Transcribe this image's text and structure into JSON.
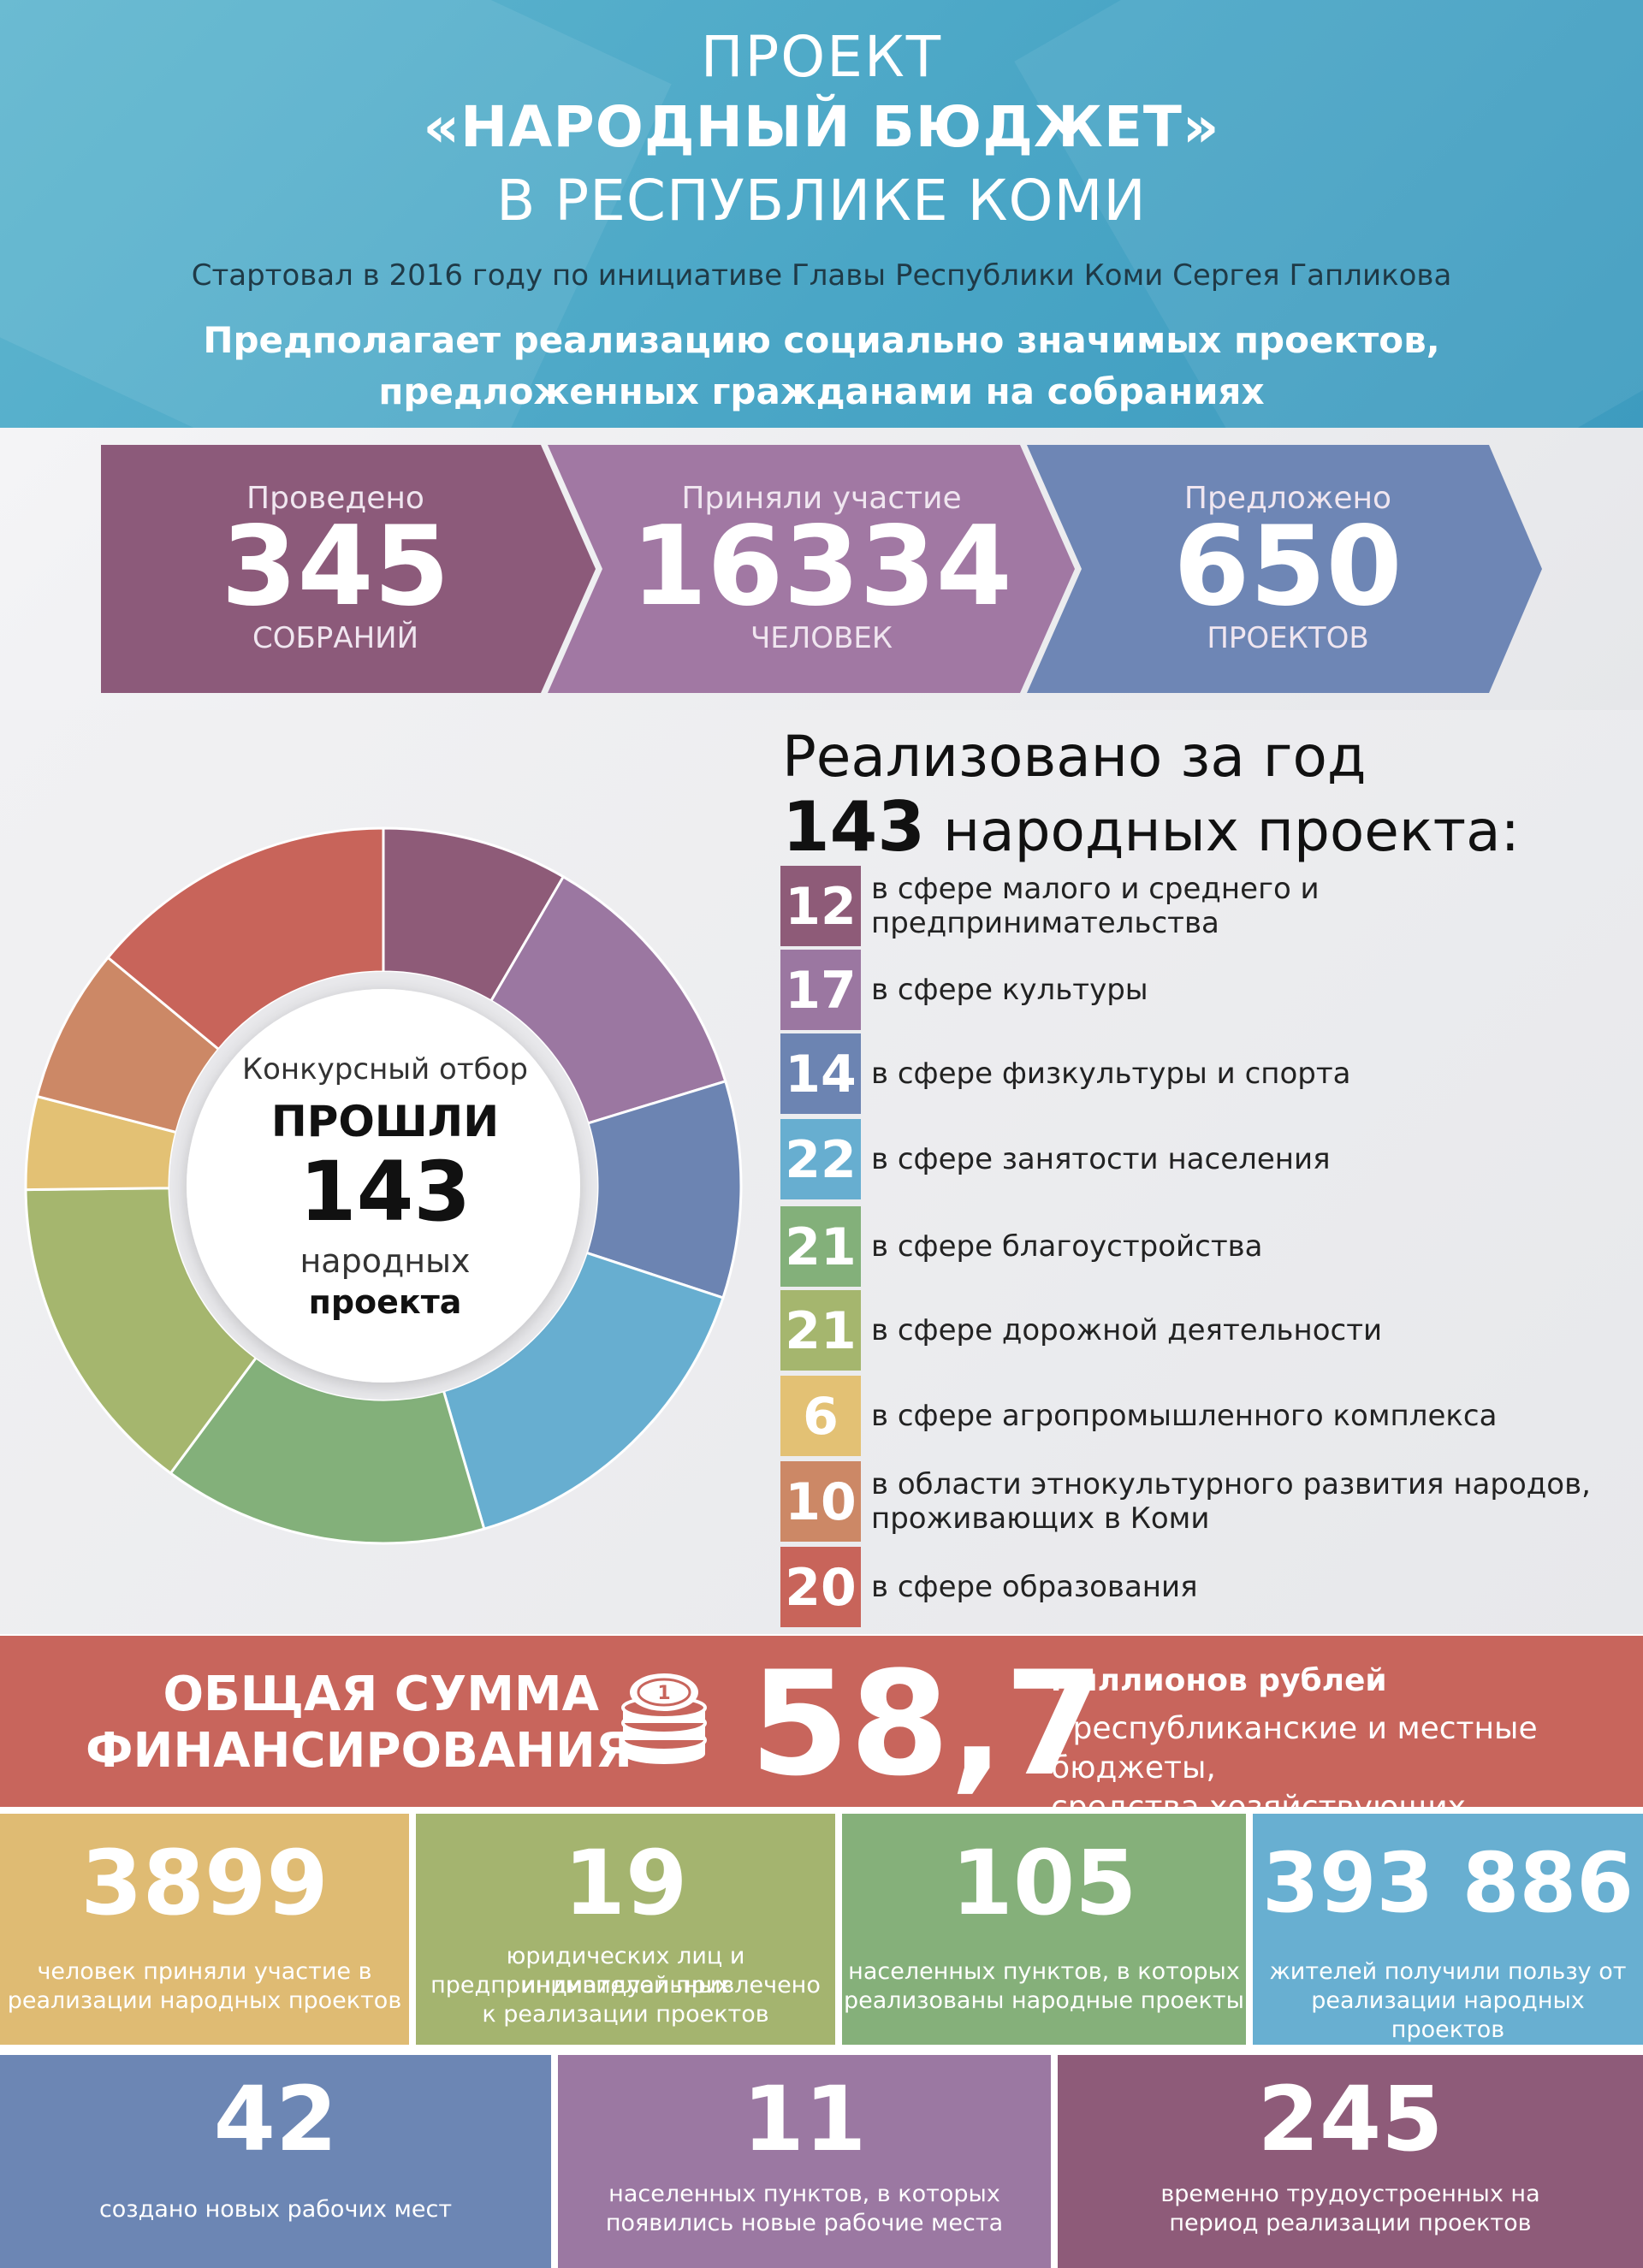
{
  "header": {
    "title_line1": "ПРОЕКТ",
    "title_line2": "«НАРОДНЫЙ БЮДЖЕТ»",
    "title_line3": "В РЕСПУБЛИКЕ КОМИ",
    "started": "Стартовал в 2016 году по инициативе Главы Республики Коми Сергея Гапликова",
    "purpose_line1": "Предполагает реализацию  социально значимых проектов,",
    "purpose_line2": "предложенных гражданами на собраниях"
  },
  "stats": [
    {
      "label": "Проведено",
      "value": "345",
      "unit": "СОБРАНИЙ",
      "color": "#8c5a7a"
    },
    {
      "label": "Приняли участие",
      "value": "16334",
      "unit": "ЧЕЛОВЕК",
      "color": "#a178a3"
    },
    {
      "label": "Предложено",
      "value": "650",
      "unit": "ПРОЕКТОВ",
      "color": "#6e86b5"
    }
  ],
  "donut_center": {
    "line1": "Конкурсный отбор",
    "line2": "ПРОШЛИ",
    "line3": "143",
    "line4": "народных",
    "line5": "проекта"
  },
  "realized": {
    "title": "Реализовано за год",
    "number": "143",
    "suffix": "народных проекта:"
  },
  "chart_data": {
    "type": "pie",
    "categories": [
      "в сфере малого и среднего и предпринимательства",
      "в сфере культуры",
      "в сфере физкультуры и спорта",
      "в сфере занятости населения",
      "в сфере благоустройства",
      "в сфере дорожной деятельности",
      "в сфере агропромышленного комплекса",
      "в области этнокультурного развития народов, проживающих в Коми",
      "в сфере образования"
    ],
    "values": [
      12,
      17,
      14,
      22,
      21,
      21,
      6,
      10,
      20
    ],
    "colors": [
      "#8e5b78",
      "#9b77a1",
      "#6c84b2",
      "#67aed0",
      "#83b07a",
      "#a5b66e",
      "#e3c174",
      "#cc8866",
      "#c8645a"
    ],
    "donut": true
  },
  "categories_list": [
    {
      "value": "12",
      "label": "в сфере малого и среднего и предпринимательства",
      "color": "#8e5b78"
    },
    {
      "value": "17",
      "label": "в сфере культуры",
      "color": "#9b77a1"
    },
    {
      "value": "14",
      "label": "в сфере физкультуры и спорта",
      "color": "#6c84b2"
    },
    {
      "value": "22",
      "label": "в сфере занятости населения",
      "color": "#67aed0"
    },
    {
      "value": "21",
      "label": "в сфере благоустройства",
      "color": "#83b07a"
    },
    {
      "value": "21",
      "label": "в сфере дорожной деятельности",
      "color": "#a5b66e"
    },
    {
      "value": "6",
      "label": "в сфере агропромышленного комплекса",
      "color": "#e3c174"
    },
    {
      "value": "10",
      "label": "в области этнокультурного развития народов, проживающих в Коми",
      "color": "#cc8866"
    },
    {
      "value": "20",
      "label": "в сфере образования",
      "color": "#c8645a"
    }
  ],
  "funding": {
    "label_line1": "ОБЩАЯ СУММА",
    "label_line2": "ФИНАНСИРОВАНИЯ",
    "value": "58,7",
    "unit": "миллионов рублей",
    "note_line1": "( республиканские и местные бюджеты,",
    "note_line2": "средства хозяйствующих субъектов )",
    "icon": "coins-icon"
  },
  "metrics_row1": [
    {
      "value": "3899",
      "desc_line1": "человек приняли участие в",
      "desc_line2": "реализации народных проектов",
      "desc_line3": "",
      "color": "#dfbb73"
    },
    {
      "value": "19",
      "desc_line1": "юридических лиц и индивидуальных",
      "desc_line2": "предпринимателей привлечено",
      "desc_line3": "к реализации проектов",
      "color": "#a4b46f"
    },
    {
      "value": "105",
      "desc_line1": "населенных пунктов, в которых",
      "desc_line2": "реализованы народные проекты",
      "desc_line3": "",
      "color": "#85b07a"
    },
    {
      "value": "393 886",
      "desc_line1": "жителей получили пользу от",
      "desc_line2": "реализации народных проектов",
      "desc_line3": "",
      "color": "#68afd1"
    }
  ],
  "metrics_row2": [
    {
      "value": "42",
      "desc_line1": "создано новых рабочих мест",
      "desc_line2": "",
      "color": "#6c86b4"
    },
    {
      "value": "11",
      "desc_line1": "населенных пунктов, в которых",
      "desc_line2": "появились новые рабочие места",
      "color": "#9b78a2"
    },
    {
      "value": "245",
      "desc_line1": "временно трудоустроенных на",
      "desc_line2": "период реализации проектов",
      "color": "#8e5b79"
    }
  ]
}
